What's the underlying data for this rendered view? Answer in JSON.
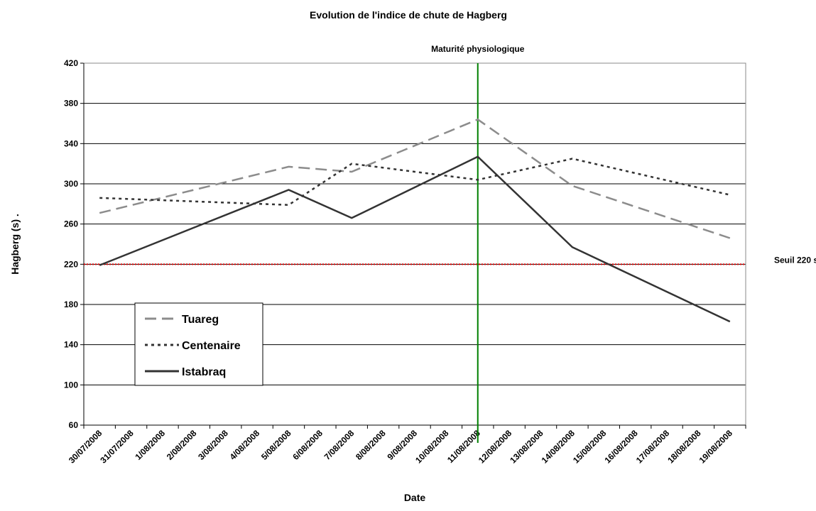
{
  "chart_data": {
    "type": "line",
    "title": "Evolution de l'indice de chute de Hagberg",
    "x_label": "Date",
    "y_label": "Hagberg (s)   .",
    "categories": [
      "30/07/2008",
      "31/07/2008",
      "1/08/2008",
      "2/08/2008",
      "3/08/2008",
      "4/08/2008",
      "5/08/2008",
      "6/08/2008",
      "7/08/2008",
      "8/08/2008",
      "9/08/2008",
      "10/08/2008",
      "11/08/2008",
      "12/08/2008",
      "13/08/2008",
      "14/08/2008",
      "15/08/2008",
      "16/08/2008",
      "17/08/2008",
      "18/08/2008",
      "19/08/2008"
    ],
    "x": [
      "30/07/2008",
      "5/08/2008",
      "7/08/2008",
      "11/08/2008",
      "14/08/2008",
      "19/08/2008"
    ],
    "series": [
      {
        "name": "Tuareg",
        "color": "#8c8c8c",
        "dash": "16 8",
        "values": [
          271,
          317,
          312,
          364,
          298,
          246
        ]
      },
      {
        "name": "Centenaire",
        "color": "#333333",
        "dash": "4 5",
        "values": [
          286,
          279,
          320,
          304,
          325,
          289
        ]
      },
      {
        "name": "Istabraq",
        "color": "#333333",
        "dash": "none",
        "values": [
          219,
          294,
          266,
          327,
          237,
          163
        ]
      }
    ],
    "ylim": [
      60,
      420
    ],
    "yticks": [
      60,
      100,
      140,
      180,
      220,
      260,
      300,
      340,
      380,
      420
    ],
    "grid": true,
    "threshold": {
      "value": 220,
      "label": "Seuil 220 s",
      "color": "#e00000"
    },
    "vline": {
      "x": "11/08/2008",
      "label": "Maturité physiologique",
      "color": "#008000"
    },
    "legend": "bottom-left"
  }
}
